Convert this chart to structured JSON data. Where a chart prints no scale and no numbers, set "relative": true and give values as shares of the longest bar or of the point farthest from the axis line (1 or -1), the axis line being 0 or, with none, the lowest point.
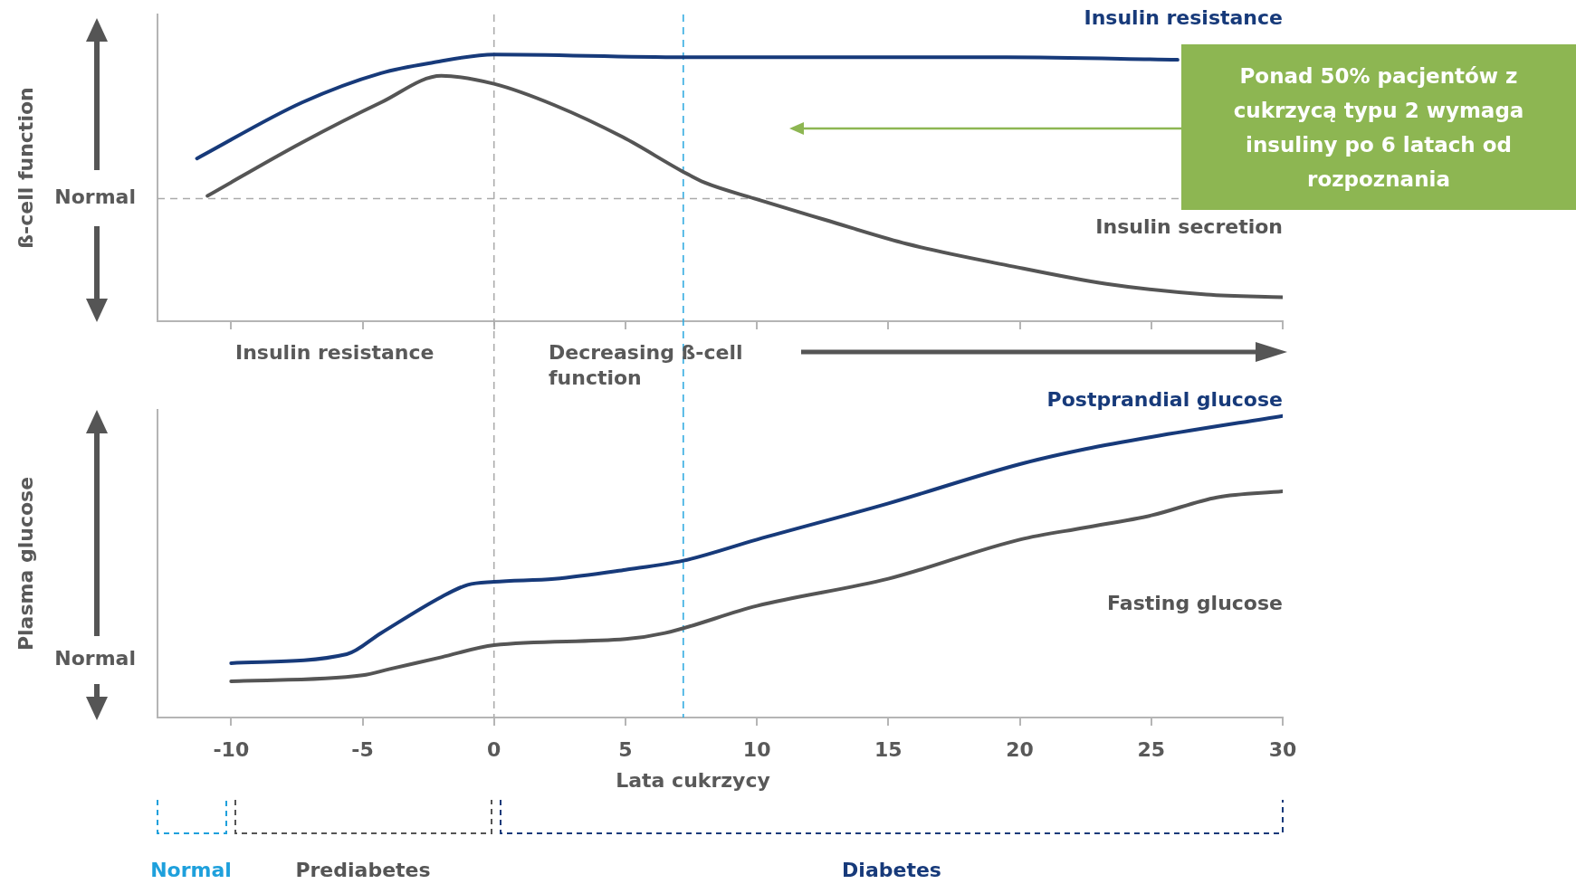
{
  "chart_data": [
    {
      "type": "line",
      "ylabel": "ß-cell function",
      "relative": true,
      "line_style": "solid",
      "tick_labels": false,
      "xlim": [
        -12.8,
        30
      ],
      "xticks": [
        -10,
        -5,
        0,
        5,
        10,
        15,
        20,
        25,
        30
      ],
      "series": [
        {
          "name": "Insulin resistance",
          "color": "#173a7a",
          "x": [
            -11.3,
            -7.3,
            -4.3,
            -2.3,
            0,
            7.2,
            19.5,
            26
          ],
          "values": [
            0.61,
            0.82,
            0.93,
            0.97,
            1,
            0.99,
            0.99,
            0.98
          ]
        },
        {
          "name": "Insulin secretion",
          "color": "#555555",
          "x": [
            -10.9,
            -7.3,
            -4.3,
            -2,
            0,
            2.3,
            4.9,
            7.2,
            8,
            9.9,
            12.6,
            15.7,
            19.5,
            23.3,
            27.1,
            30
          ],
          "values": [
            0.47,
            0.67,
            0.82,
            0.92,
            0.89,
            0.81,
            0.69,
            0.56,
            0.52,
            0.46,
            0.38,
            0.29,
            0.21,
            0.14,
            0.1,
            0.09
          ]
        }
      ],
      "ref_lines": [
        {
          "axis": "x",
          "value": 0,
          "color": "#aaaaaa",
          "line_style": "dashed"
        },
        {
          "axis": "x",
          "value": 7.2,
          "color": "#29a8e0",
          "line_style": "dashed"
        },
        {
          "axis": "y",
          "value": 0.46,
          "label": "Normal",
          "color": "#aaaaaa",
          "line_style": "dashed"
        }
      ],
      "annotations": [
        "Insulin resistance",
        "Decreasing ß-cell function",
        "Ponad 50% pacjentów z cukrzycą typu 2 wymaga insuliny po 6 latach od rozpoznania"
      ]
    },
    {
      "type": "line",
      "ylabel": "Plasma glucose",
      "xlabel": "Lata cukrzycy",
      "relative": true,
      "line_style": "solid",
      "tick_labels": "x",
      "xlim": [
        -12.8,
        30
      ],
      "xticks": [
        -10,
        -5,
        0,
        5,
        10,
        15,
        20,
        25,
        30
      ],
      "series": [
        {
          "name": "Postprandial glucose",
          "color": "#173a7a",
          "x": [
            -10,
            -5.6,
            -4.3,
            -2,
            -1,
            0,
            2.3,
            5,
            7.2,
            10,
            15,
            20,
            22.5,
            25,
            30
          ],
          "values": [
            0.18,
            0.21,
            0.28,
            0.4,
            0.44,
            0.45,
            0.46,
            0.49,
            0.52,
            0.59,
            0.71,
            0.84,
            0.89,
            0.93,
            1
          ]
        },
        {
          "name": "Fasting glucose",
          "color": "#555555",
          "x": [
            -10,
            -5,
            -4,
            -2,
            0,
            5,
            6.5,
            10,
            15,
            20,
            22.5,
            25,
            27.5,
            30
          ],
          "values": [
            0.12,
            0.14,
            0.16,
            0.2,
            0.24,
            0.26,
            0.28,
            0.37,
            0.46,
            0.59,
            0.63,
            0.67,
            0.73,
            0.75
          ]
        }
      ],
      "ref_lines": [
        {
          "axis": "x",
          "value": 0,
          "color": "#aaaaaa",
          "line_style": "dashed"
        },
        {
          "axis": "x",
          "value": 7.2,
          "color": "#29a8e0",
          "line_style": "dashed"
        }
      ],
      "annotations": [
        "Normal",
        "Normal",
        "Prediabetes",
        "Diabetes"
      ]
    }
  ]
}
